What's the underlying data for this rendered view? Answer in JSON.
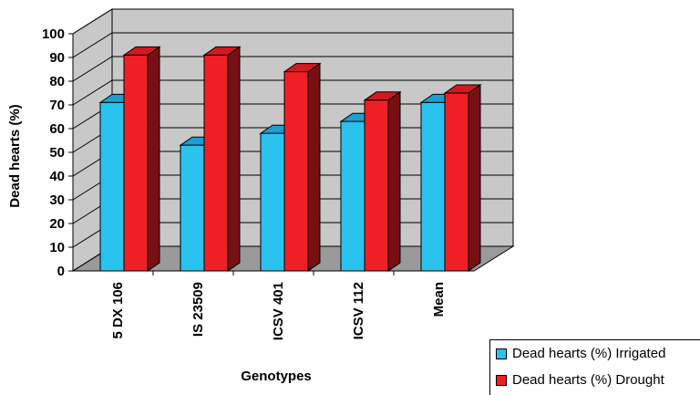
{
  "chart_data": {
    "type": "bar",
    "title": "",
    "xlabel": "Genotypes",
    "ylabel": "Dead hearts (%)",
    "ylim": [
      0,
      100
    ],
    "yticks": [
      "0",
      "10",
      "20",
      "30",
      "40",
      "50",
      "60",
      "70",
      "80",
      "90",
      "100"
    ],
    "categories": [
      "5 DX 106",
      "IS 23509",
      "ICSV 401",
      "ICSV 112",
      "Mean"
    ],
    "series": [
      {
        "name": "Dead hearts (%) Irrigated",
        "values": [
          71,
          53,
          58,
          63,
          71
        ]
      },
      {
        "name": "Dead hearts (%) Drought",
        "values": [
          91,
          91,
          84,
          72,
          75
        ]
      }
    ],
    "legend_position": "bottom-right",
    "grid": true,
    "style": "3d-clustered-column"
  },
  "colors": {
    "irrigated_front": "#29c3ee",
    "irrigated_top": "#1b9fcf",
    "irrigated_side": "#1a7fa6",
    "drought_front": "#ee2026",
    "drought_top": "#d01a20",
    "drought_side": "#7a0f12",
    "wall": "#c8c8c8",
    "floor": "#9a9a9a"
  }
}
